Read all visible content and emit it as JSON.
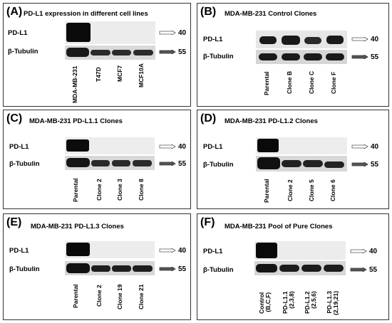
{
  "panels": {
    "A": {
      "letter": "(A)",
      "title": "PD-L1 expression in different cell lines",
      "row_top": "PD-L1",
      "row_bottom": "β-Tubulin",
      "kda_top": "40",
      "kda_bottom": "55",
      "lanes": [
        "MDA-MB-231",
        "T47D",
        "MCF7",
        "MCF10A"
      ]
    },
    "B": {
      "letter": "(B)",
      "title": "MDA-MB-231 Control Clones",
      "row_top": "PD-L1",
      "row_bottom": "β-Tubulin",
      "kda_top": "40",
      "kda_bottom": "55",
      "lanes": [
        "Parental",
        "Clone B",
        "Clone C",
        "Clone F"
      ]
    },
    "C": {
      "letter": "(C)",
      "title": "MDA-MB-231 PD-L1.1 Clones",
      "row_top": "PD-L1",
      "row_bottom": "β-Tubulin",
      "kda_top": "40",
      "kda_bottom": "55",
      "lanes": [
        "Parental",
        "Clone 2",
        "Clone 3",
        "Clone 8"
      ]
    },
    "D": {
      "letter": "(D)",
      "title": "MDA-MB-231 PD-L1.2 Clones",
      "row_top": "PD-L1",
      "row_bottom": "β-Tubulin",
      "kda_top": "40",
      "kda_bottom": "55",
      "lanes": [
        "Parental",
        "Clone 2",
        "Clone 5",
        "Clone 6"
      ]
    },
    "E": {
      "letter": "(E)",
      "title": "MDA-MB-231 PD-L1.3 Clones",
      "row_top": "PD-L1",
      "row_bottom": "β-Tubulin",
      "kda_top": "40",
      "kda_bottom": "55",
      "lanes": [
        "Parental",
        "Clone 2",
        "Clone 19",
        "Clone 21"
      ]
    },
    "F": {
      "letter": "(F)",
      "title": "MDA-MB-231 Pool of Pure Clones",
      "row_top": "PD-L1",
      "row_bottom": "β-Tubulin",
      "kda_top": "40",
      "kda_bottom": "55",
      "lanes": [
        [
          "Control",
          "(B,C,F)"
        ],
        [
          "PD-L1.1",
          "(2,3,8)"
        ],
        [
          "PD-L1.2",
          "(2,5,6)"
        ],
        [
          "PD-L1.3",
          "(2,19,21)"
        ]
      ]
    }
  }
}
